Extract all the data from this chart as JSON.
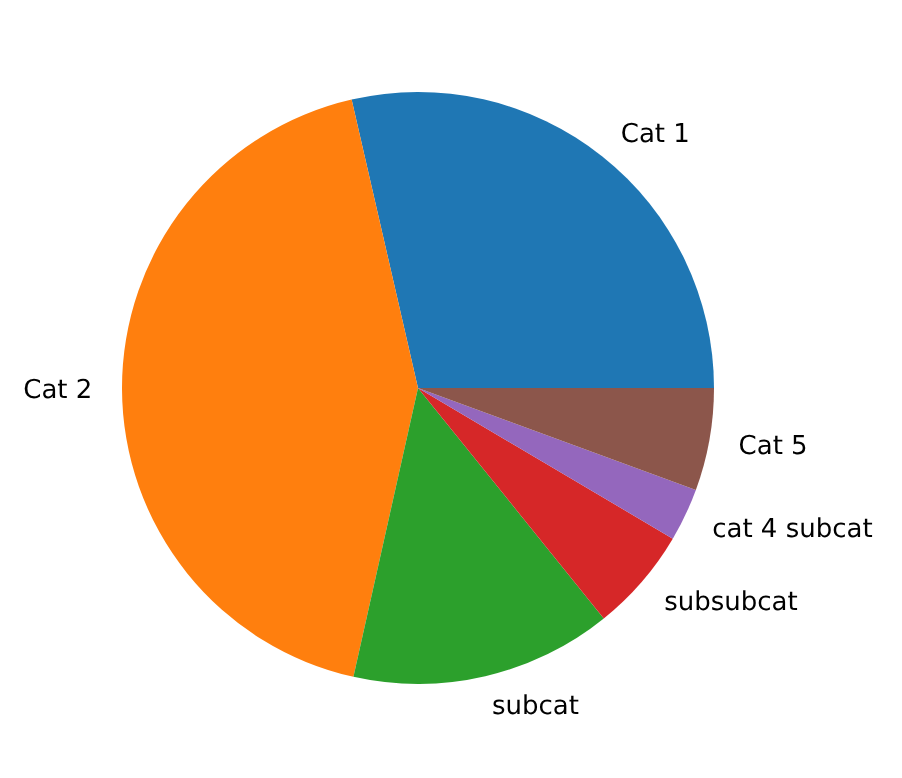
{
  "chart_data": {
    "type": "pie",
    "categories": [
      "Cat 1",
      "Cat 2",
      "subcat",
      "subsubcat",
      "cat 4 subcat",
      "Cat 5"
    ],
    "values": [
      28.6,
      42.9,
      14.3,
      5.7,
      2.9,
      5.6
    ],
    "colors": [
      "#1f77b4",
      "#ff7f0e",
      "#2ca02c",
      "#d62728",
      "#9467bd",
      "#8c564b"
    ]
  }
}
